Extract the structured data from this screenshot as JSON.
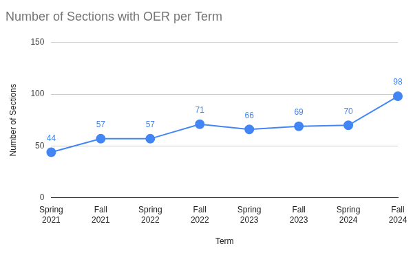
{
  "chart_data": {
    "type": "line",
    "title": "Number of Sections with OER per Term",
    "x_label": "Term",
    "y_label": "Number of Sections",
    "categories": [
      "Spring 2021",
      "Fall 2021",
      "Spring 2022",
      "Fall 2022",
      "Spring 2023",
      "Fall 2023",
      "Spring 2024",
      "Fall 2024"
    ],
    "values": [
      44,
      57,
      57,
      71,
      66,
      69,
      70,
      98
    ],
    "color": "#4285f4",
    "ylim": [
      0,
      150
    ],
    "yticks": [
      0,
      50,
      100,
      150
    ],
    "grid": true,
    "data_labels": true,
    "marker": "circle"
  }
}
